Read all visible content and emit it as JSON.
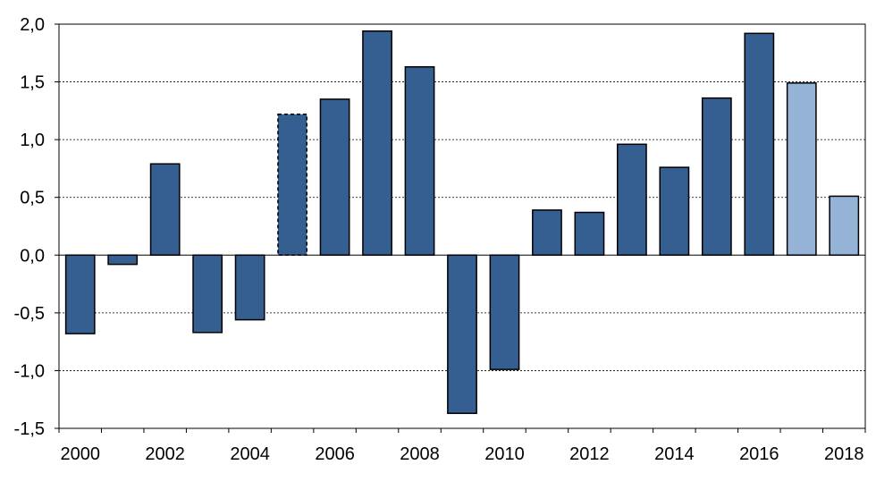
{
  "chart_data": {
    "type": "bar",
    "title": "",
    "xlabel": "",
    "ylabel": "",
    "ylim": [
      -1.5,
      2.0
    ],
    "grid": true,
    "legend": "none",
    "yticks": [
      "-1,5",
      "-1,0",
      "-0,5",
      "0,0",
      "0,5",
      "1,0",
      "1,5",
      "2,0"
    ],
    "ytick_values": [
      -1.5,
      -1.0,
      -0.5,
      0.0,
      0.5,
      1.0,
      1.5,
      2.0
    ],
    "xtick_labels": [
      "2000",
      "2002",
      "2004",
      "2006",
      "2008",
      "2010",
      "2012",
      "2014",
      "2016",
      "2018"
    ],
    "categories": [
      "2000",
      "2001",
      "2002",
      "2003",
      "2004",
      "2005",
      "2006",
      "2007",
      "2008",
      "2009",
      "2010",
      "2011",
      "2012",
      "2013",
      "2014",
      "2015",
      "2016",
      "2017",
      "2018"
    ],
    "values": [
      -0.68,
      -0.08,
      0.79,
      -0.67,
      -0.56,
      1.22,
      1.35,
      1.94,
      1.63,
      -1.37,
      -0.99,
      0.39,
      0.37,
      0.96,
      0.76,
      1.36,
      1.92,
      1.49,
      0.51
    ],
    "bar_styles": [
      "actual",
      "actual",
      "actual",
      "actual",
      "actual",
      "dashed",
      "actual",
      "actual",
      "actual",
      "actual",
      "actual",
      "actual",
      "actual",
      "actual",
      "actual",
      "actual",
      "actual",
      "forecast",
      "forecast"
    ],
    "colors": {
      "actual": "#355E91",
      "forecast": "#95B3D7",
      "axis": "#000000"
    }
  }
}
